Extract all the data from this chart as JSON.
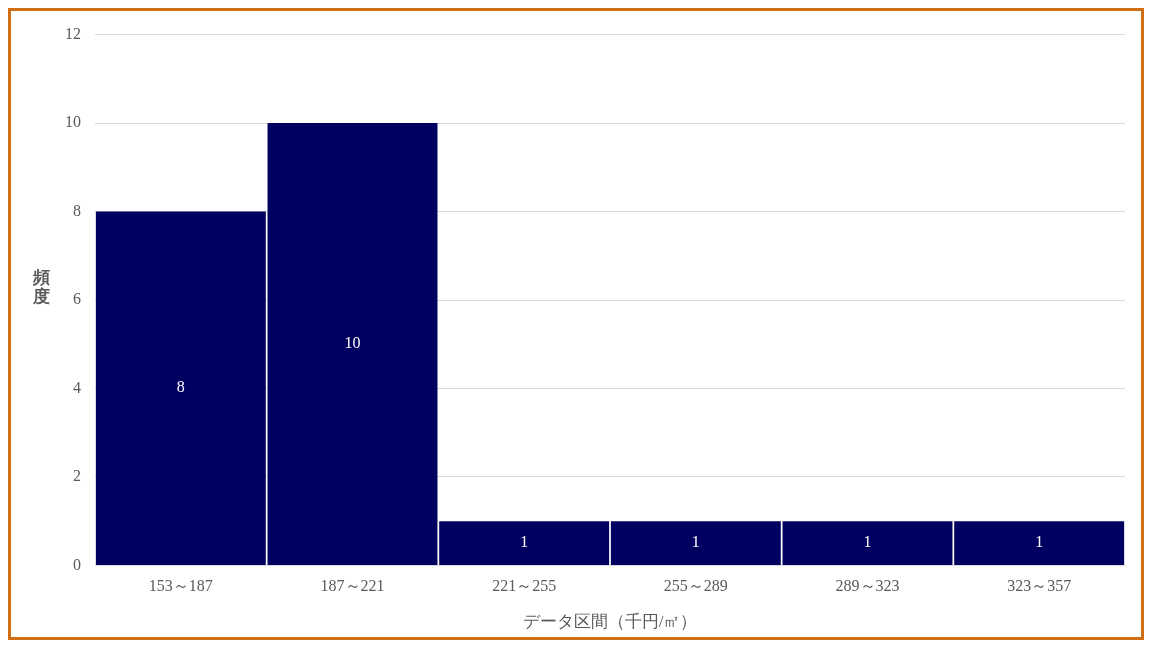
{
  "chart_data": {
    "type": "bar",
    "xlabel": "データ区間（千円/㎡）",
    "ylabel": "頻度",
    "categories": [
      "153～187",
      "187～221",
      "221～255",
      "255～289",
      "289～323",
      "323～357"
    ],
    "values": [
      8,
      10,
      1,
      1,
      1,
      1
    ],
    "color": "#000060",
    "ylim": [
      0,
      12
    ],
    "yticks": [
      0,
      2,
      4,
      6,
      8,
      10,
      12
    ],
    "grid": "y",
    "data_labels": true,
    "legend": false
  }
}
